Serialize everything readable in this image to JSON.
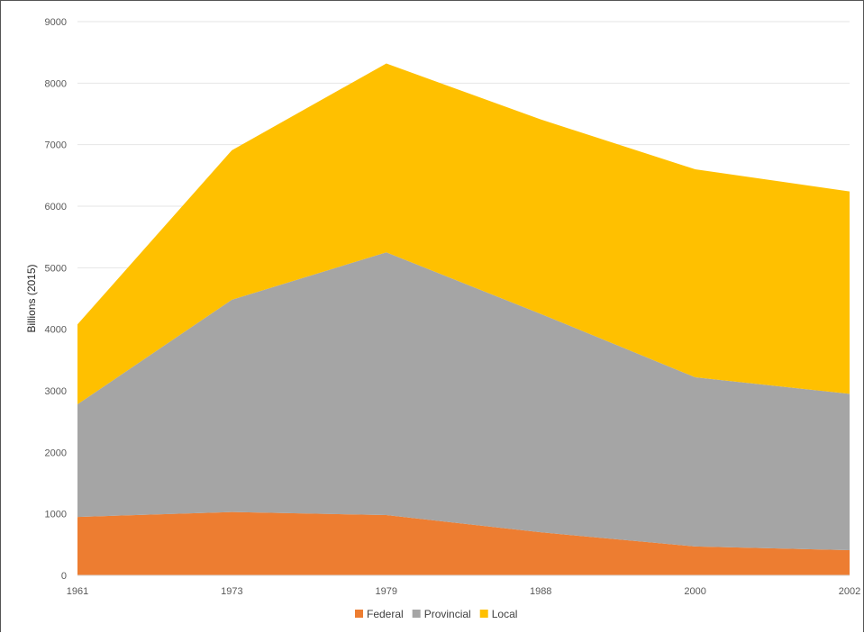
{
  "chart_data": {
    "type": "area",
    "stacked": true,
    "categories": [
      "1961",
      "1973",
      "1979",
      "1988",
      "2000",
      "2002"
    ],
    "series": [
      {
        "name": "Federal",
        "color": "#ED7D31",
        "values": [
          950,
          1030,
          980,
          700,
          470,
          410
        ]
      },
      {
        "name": "Provincial",
        "color": "#A5A5A5",
        "values": [
          1830,
          3450,
          4270,
          3550,
          2750,
          2540
        ]
      },
      {
        "name": "Local",
        "color": "#FFC000",
        "values": [
          1300,
          2430,
          3070,
          3160,
          3380,
          3290
        ]
      }
    ],
    "title": "",
    "xlabel": "",
    "ylabel": "Billions (2015)",
    "ylim": [
      0,
      9000
    ],
    "yticks": [
      "0",
      "1000",
      "2000",
      "3000",
      "4000",
      "5000",
      "6000",
      "7000",
      "8000",
      "9000"
    ],
    "grid": true,
    "legend_position": "bottom"
  }
}
